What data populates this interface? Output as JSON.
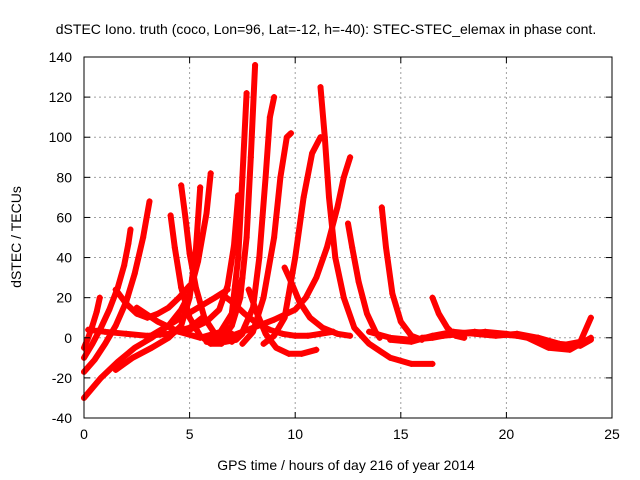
{
  "chart_data": {
    "type": "scatter",
    "title": "dSTEC Iono. truth (coco, Lon=96, Lat=-12, h=-40): STEC-STEC_elemax in phase cont.",
    "xlabel": "GPS time / hours of day 216 of year 2014",
    "ylabel": "dSTEC  / TECUs",
    "xlim": [
      0,
      25
    ],
    "ylim": [
      -40,
      140
    ],
    "x_ticks": [
      0,
      5,
      10,
      15,
      20,
      25
    ],
    "y_ticks": [
      -40,
      -20,
      0,
      20,
      40,
      60,
      80,
      100,
      120,
      140
    ],
    "grid": true,
    "legend": "none",
    "marker": "plus",
    "color": "#ff0000",
    "series": [
      {
        "x": [
          0.0,
          0.2,
          0.4,
          0.6,
          0.75
        ],
        "y": [
          -5,
          0,
          6,
          13,
          20
        ]
      },
      {
        "x": [
          0.0,
          0.4,
          0.8,
          1.2,
          1.6,
          1.9,
          2.1,
          2.2
        ],
        "y": [
          -10,
          -3,
          5,
          14,
          25,
          36,
          47,
          54
        ]
      },
      {
        "x": [
          0.0,
          0.5,
          1.0,
          1.5,
          2.0,
          2.4,
          2.8,
          3.1
        ],
        "y": [
          -17,
          -11,
          -3,
          6,
          18,
          32,
          50,
          68
        ]
      },
      {
        "x": [
          0.0,
          0.8,
          1.6,
          2.4,
          3.2,
          4.0,
          4.6,
          5.0,
          5.4,
          5.8,
          6.0
        ],
        "y": [
          -30,
          -20,
          -12,
          -5,
          0,
          6,
          14,
          22,
          38,
          62,
          82
        ]
      },
      {
        "x": [
          1.5,
          2.3,
          3.2,
          4.0,
          4.6,
          5.0,
          5.3,
          5.5
        ],
        "y": [
          -16,
          -10,
          -5,
          0,
          6,
          20,
          44,
          75
        ]
      },
      {
        "x": [
          0.2,
          1.0,
          2.0,
          3.0,
          4.0,
          5.0,
          5.6
        ],
        "y": [
          4,
          3,
          2,
          1,
          2,
          5,
          10
        ]
      },
      {
        "x": [
          4.1,
          4.3,
          4.6,
          5.0,
          5.5,
          6.0,
          6.5,
          7.0
        ],
        "y": [
          61,
          45,
          25,
          10,
          1,
          -3,
          -3,
          2
        ]
      },
      {
        "x": [
          4.6,
          4.8,
          5.0,
          5.3,
          5.7,
          6.2,
          6.7,
          7.2,
          7.5
        ],
        "y": [
          76,
          60,
          42,
          25,
          10,
          2,
          -2,
          -1,
          2
        ]
      },
      {
        "x": [
          3.0,
          3.8,
          4.6,
          5.4,
          6.2,
          6.8
        ],
        "y": [
          0,
          5,
          10,
          15,
          20,
          24
        ]
      },
      {
        "x": [
          1.5,
          2.0,
          2.5,
          3.0,
          3.5,
          4.0,
          4.5,
          5.0
        ],
        "y": [
          24,
          17,
          12,
          10,
          12,
          15,
          20,
          26
        ]
      },
      {
        "x": [
          2.5,
          3.5,
          4.5,
          5.5,
          6.5,
          7.0,
          7.5
        ],
        "y": [
          15,
          8,
          3,
          0,
          3,
          12,
          30
        ]
      },
      {
        "x": [
          5.0,
          5.8,
          6.4,
          6.8,
          7.1,
          7.3
        ],
        "y": [
          4,
          8,
          14,
          26,
          46,
          71
        ]
      },
      {
        "x": [
          5.8,
          6.4,
          7.0,
          7.3,
          7.5,
          7.7
        ],
        "y": [
          -2,
          2,
          12,
          40,
          80,
          122
        ]
      },
      {
        "x": [
          6.5,
          7.0,
          7.4,
          7.7,
          7.9,
          8.1
        ],
        "y": [
          -1,
          6,
          20,
          50,
          90,
          136
        ]
      },
      {
        "x": [
          7.0,
          7.5,
          8.0,
          8.3,
          8.6,
          8.8,
          9.0
        ],
        "y": [
          -2,
          3,
          15,
          40,
          80,
          110,
          120
        ]
      },
      {
        "x": [
          7.5,
          8.0,
          8.5,
          9.0,
          9.3,
          9.6,
          9.8
        ],
        "y": [
          -3,
          3,
          20,
          50,
          80,
          100,
          102
        ]
      },
      {
        "x": [
          8.5,
          9.0,
          9.5,
          10.0,
          10.4,
          10.8,
          11.2
        ],
        "y": [
          -3,
          1,
          10,
          40,
          70,
          92,
          100
        ]
      },
      {
        "x": [
          6.0,
          7.0,
          8.0,
          9.0,
          10.0,
          10.5,
          11.0,
          11.5,
          12.0,
          12.3,
          12.6
        ],
        "y": [
          -2,
          1,
          5,
          9,
          14,
          20,
          30,
          45,
          65,
          80,
          90
        ]
      },
      {
        "x": [
          11.2,
          11.4,
          11.6,
          11.9,
          12.3,
          12.8,
          13.5,
          14.5,
          15.5,
          16.5
        ],
        "y": [
          125,
          100,
          70,
          40,
          20,
          5,
          -3,
          -10,
          -13,
          -13
        ]
      },
      {
        "x": [
          9.5,
          9.8,
          10.2,
          10.7,
          11.3,
          12.0,
          12.6
        ],
        "y": [
          35,
          28,
          18,
          10,
          5,
          2,
          1
        ]
      },
      {
        "x": [
          7.8,
          8.2,
          8.6,
          9.1,
          9.7,
          10.3,
          11.0
        ],
        "y": [
          24,
          12,
          2,
          -5,
          -8,
          -8,
          -6
        ]
      },
      {
        "x": [
          6.5,
          7.0,
          7.6,
          8.2,
          8.8,
          9.4,
          10.0,
          10.6,
          11.2,
          11.8
        ],
        "y": [
          22,
          18,
          12,
          7,
          4,
          2,
          1,
          1,
          2,
          3
        ]
      },
      {
        "x": [
          12.5,
          12.7,
          13.0,
          13.4,
          13.8,
          14.0
        ],
        "y": [
          57,
          45,
          28,
          12,
          3,
          0
        ]
      },
      {
        "x": [
          14.1,
          14.3,
          14.6,
          15.0,
          15.5,
          16.0
        ],
        "y": [
          65,
          45,
          22,
          8,
          1,
          -1
        ]
      },
      {
        "x": [
          16.5,
          16.8,
          17.2,
          17.6,
          18.0
        ],
        "y": [
          20,
          12,
          5,
          1,
          0
        ]
      },
      {
        "x": [
          13.5,
          14.5,
          15.5,
          16.5,
          17.5,
          18.5,
          19.5,
          20.5,
          21.5,
          22.5,
          23.5,
          24.0
        ],
        "y": [
          3,
          0,
          -1,
          0,
          2,
          3,
          2,
          1,
          0,
          -3,
          -4,
          -1
        ]
      },
      {
        "x": [
          14.5,
          15.5,
          16.5,
          17.5,
          18.5,
          19.5,
          20.5,
          21.5,
          22.5,
          23.5,
          24.0
        ],
        "y": [
          -1,
          -2,
          1,
          3,
          2,
          1,
          2,
          0,
          -4,
          -2,
          10
        ]
      },
      {
        "x": [
          16.0,
          17.0,
          18.0,
          19.0,
          20.0,
          21.0,
          22.0,
          23.0,
          24.0
        ],
        "y": [
          0,
          1,
          2,
          3,
          2,
          0,
          -5,
          -6,
          0
        ]
      }
    ]
  }
}
